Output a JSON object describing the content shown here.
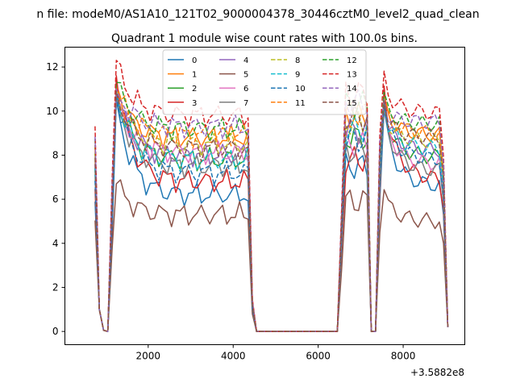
{
  "figure": {
    "suptitle": "n file: modeM0/AS1A10_121T02_9000004378_30446cztM0_level2_quad_clean"
  },
  "chart_data": {
    "type": "line",
    "title": "Quadrant 1 module wise count rates with 100.0s bins.",
    "xlabel": "",
    "ylabel": "",
    "x_offset_label": "+3.5882e8",
    "xlim": [
      40,
      9450
    ],
    "ylim": [
      -0.6,
      12.9
    ],
    "x_ticks": [
      2000,
      4000,
      6000,
      8000
    ],
    "x_tick_labels": [
      "2000",
      "4000",
      "6000",
      "8000"
    ],
    "y_ticks": [
      0,
      2,
      4,
      6,
      8,
      10,
      12
    ],
    "y_tick_labels": [
      "0",
      "2",
      "4",
      "6",
      "8",
      "10",
      "12"
    ],
    "grid": false,
    "legend_position": "top-center",
    "legend_columns": 4,
    "segments": [
      {
        "x": [
          750,
          850,
          950,
          1050
        ],
        "role": "entry"
      },
      {
        "x": [
          1150,
          1250,
          1350,
          1450,
          1550,
          1650,
          1750,
          1850,
          1950,
          2050,
          2150,
          2250,
          2350,
          2450,
          2550,
          2650,
          2750,
          2850,
          2950,
          3050,
          3150,
          3250,
          3350,
          3450,
          3550,
          3650,
          3750,
          3850,
          3950,
          4050,
          4150,
          4250,
          4350
        ],
        "role": "plateau1"
      },
      {
        "x": [
          4450,
          4550,
          4650,
          4750,
          6450
        ],
        "role": "gap"
      },
      {
        "x": [
          6550,
          6650,
          6750,
          6850,
          6950,
          7050,
          7150,
          7250,
          7350,
          7450,
          7550,
          7650,
          7750,
          7850,
          7950,
          8050,
          8150,
          8250,
          8350,
          8450,
          8550,
          8650,
          8750,
          8850,
          8950,
          9050
        ],
        "role": "plateau2"
      }
    ],
    "series": [
      {
        "name": "0",
        "color": "#1f77b4",
        "dash": "solid",
        "level1": 6.2,
        "level2": 6.6,
        "peak": 10.5
      },
      {
        "name": "1",
        "color": "#ff7f0e",
        "dash": "solid",
        "level1": 8.8,
        "level2": 8.9,
        "peak": 11.2
      },
      {
        "name": "2",
        "color": "#2ca02c",
        "dash": "solid",
        "level1": 7.8,
        "level2": 7.9,
        "peak": 10.9
      },
      {
        "name": "3",
        "color": "#d62728",
        "dash": "solid",
        "level1": 6.8,
        "level2": 6.9,
        "peak": 11.6
      },
      {
        "name": "4",
        "color": "#9467bd",
        "dash": "solid",
        "level1": 8.0,
        "level2": 8.2,
        "peak": 10.8
      },
      {
        "name": "5",
        "color": "#8c564b",
        "dash": "solid",
        "level1": 5.3,
        "level2": 5.0,
        "peak": 6.7
      },
      {
        "name": "6",
        "color": "#e377c2",
        "dash": "solid",
        "level1": 8.1,
        "level2": 7.6,
        "peak": 10.6
      },
      {
        "name": "7",
        "color": "#7f7f7f",
        "dash": "solid",
        "level1": 7.5,
        "level2": 7.3,
        "peak": 10.7
      },
      {
        "name": "8",
        "color": "#bcbd22",
        "dash": "dashed",
        "level1": 8.5,
        "level2": 8.6,
        "peak": 10.8
      },
      {
        "name": "9",
        "color": "#17becf",
        "dash": "dashed",
        "level1": 7.8,
        "level2": 8.3,
        "peak": 10.9
      },
      {
        "name": "10",
        "color": "#1f77b4",
        "dash": "dashed",
        "level1": 7.2,
        "level2": 7.8,
        "peak": 10.8
      },
      {
        "name": "11",
        "color": "#ff7f0e",
        "dash": "dashed",
        "level1": 8.9,
        "level2": 9.0,
        "peak": 11.1
      },
      {
        "name": "12",
        "color": "#2ca02c",
        "dash": "dashed",
        "level1": 9.2,
        "level2": 9.4,
        "peak": 11.3
      },
      {
        "name": "13",
        "color": "#d62728",
        "dash": "dashed",
        "level1": 9.8,
        "level2": 9.9,
        "peak": 12.3
      },
      {
        "name": "14",
        "color": "#9467bd",
        "dash": "dashed",
        "level1": 9.3,
        "level2": 9.5,
        "peak": 11.0
      },
      {
        "name": "15",
        "color": "#8c564b",
        "dash": "dashed",
        "level1": 8.3,
        "level2": 8.8,
        "peak": 10.9
      }
    ]
  }
}
